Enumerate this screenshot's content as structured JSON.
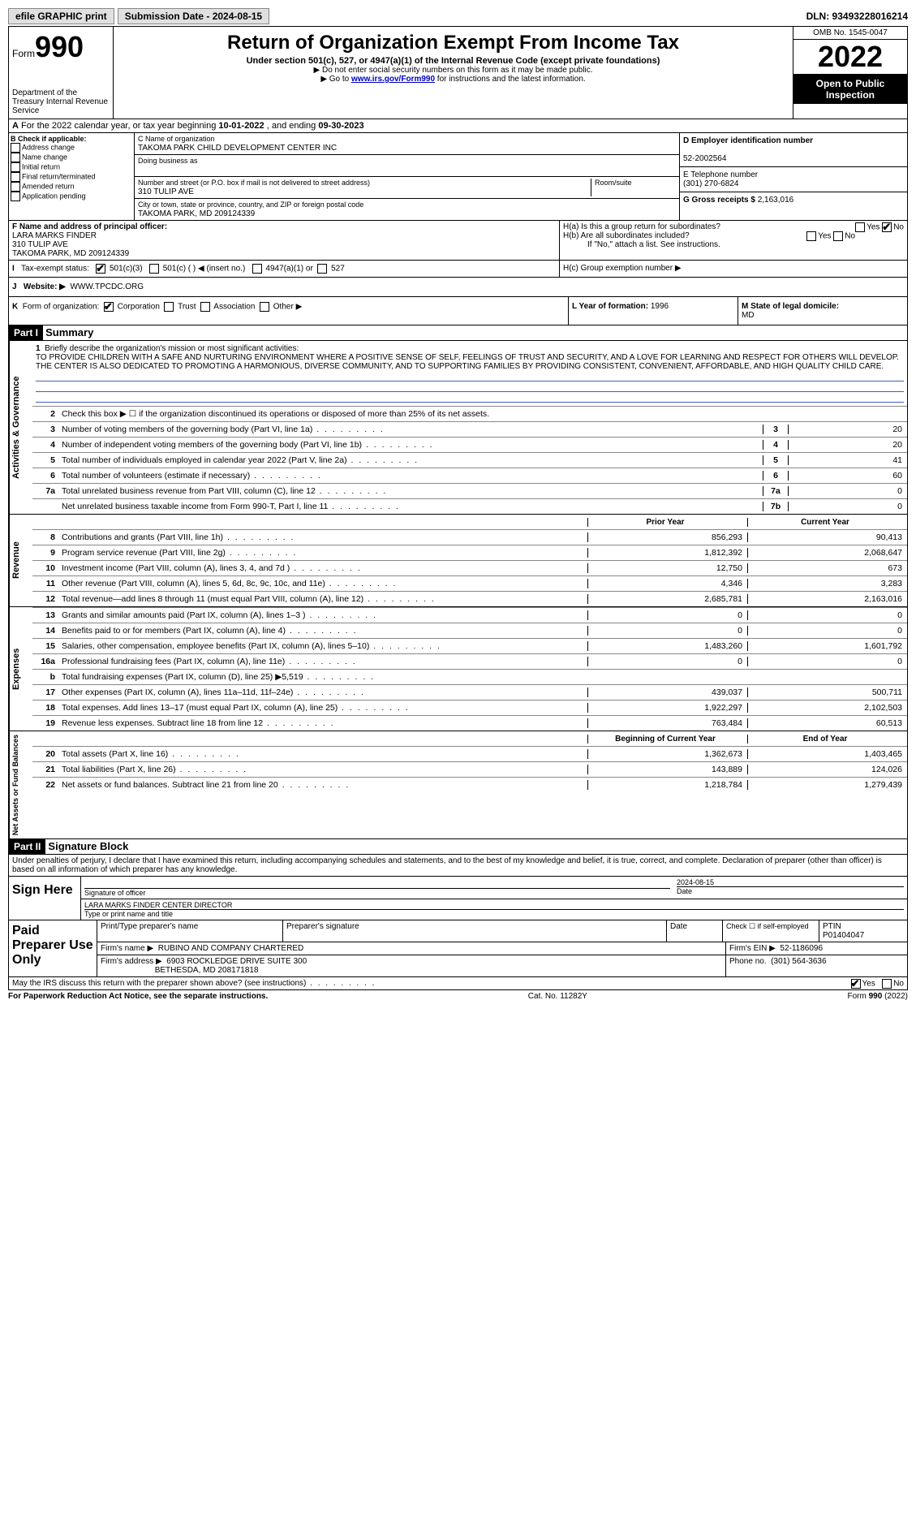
{
  "topbar": {
    "efile": "efile GRAPHIC print",
    "submission": "Submission Date - 2024-08-15",
    "dln": "DLN: 93493228016214"
  },
  "header": {
    "form_prefix": "Form",
    "form_number": "990",
    "title": "Return of Organization Exempt From Income Tax",
    "subtitle": "Under section 501(c), 527, or 4947(a)(1) of the Internal Revenue Code (except private foundations)",
    "note1": "▶ Do not enter social security numbers on this form as it may be made public.",
    "note2_prefix": "▶ Go to ",
    "note2_link": "www.irs.gov/Form990",
    "note2_suffix": " for instructions and the latest information.",
    "dept": "Department of the Treasury\nInternal Revenue Service",
    "omb": "OMB No. 1545-0047",
    "year": "2022",
    "open": "Open to Public Inspection"
  },
  "rowA": {
    "label": "A",
    "text_pre": "For the 2022 calendar year, or tax year beginning ",
    "begin": "10-01-2022",
    "mid": " , and ending ",
    "end": "09-30-2023"
  },
  "boxB": {
    "title": "B Check if applicable:",
    "items": [
      "Address change",
      "Name change",
      "Initial return",
      "Final return/terminated",
      "Amended return",
      "Application pending"
    ]
  },
  "boxC": {
    "name_label": "C Name of organization",
    "name": "TAKOMA PARK CHILD DEVELOPMENT CENTER INC",
    "dba_label": "Doing business as",
    "dba": "",
    "addr_label": "Number and street (or P.O. box if mail is not delivered to street address)",
    "room_label": "Room/suite",
    "addr": "310 TULIP AVE",
    "city_label": "City or town, state or province, country, and ZIP or foreign postal code",
    "city": "TAKOMA PARK, MD  209124339"
  },
  "boxD": {
    "ein_label": "D Employer identification number",
    "ein": "52-2002564",
    "phone_label": "E Telephone number",
    "phone": "(301) 270-6824",
    "gross_label": "G Gross receipts $",
    "gross": "2,163,016"
  },
  "boxF": {
    "label": "F  Name and address of principal officer:",
    "name": "LARA MARKS FINDER",
    "addr1": "310 TULIP AVE",
    "addr2": "TAKOMA PARK, MD  209124339"
  },
  "boxH": {
    "ha": "H(a)  Is this a group return for subordinates?",
    "hb": "H(b)  Are all subordinates included?",
    "hb_note": "If \"No,\" attach a list. See instructions.",
    "hc": "H(c)  Group exemption number ▶",
    "yes": "Yes",
    "no": "No"
  },
  "rowI": {
    "label": "I",
    "text": "Tax-exempt status:",
    "opt1": "501(c)(3)",
    "opt2": "501(c) (  ) ◀ (insert no.)",
    "opt3": "4947(a)(1) or",
    "opt4": "527"
  },
  "rowJ": {
    "label": "J",
    "text": "Website: ▶",
    "val": "WWW.TPCDC.ORG"
  },
  "rowK": {
    "label": "K",
    "text": "Form of organization:",
    "opts": [
      "Corporation",
      "Trust",
      "Association",
      "Other ▶"
    ]
  },
  "rowL": {
    "yof_label": "L Year of formation:",
    "yof": "1996",
    "state_label": "M State of legal domicile: ",
    "state": "MD"
  },
  "part1": {
    "header": "Part I",
    "title": "Summary"
  },
  "summary": {
    "l1_label": "1",
    "l1_text": "Briefly describe the organization's mission or most significant activities:",
    "l1_mission": "TO PROVIDE CHILDREN WITH A SAFE AND NURTURING ENVIRONMENT WHERE A POSITIVE SENSE OF SELF, FEELINGS OF TRUST AND SECURITY, AND A LOVE FOR LEARNING AND RESPECT FOR OTHERS WILL DEVELOP. THE CENTER IS ALSO DEDICATED TO PROMOTING A HARMONIOUS, DIVERSE COMMUNITY, AND TO SUPPORTING FAMILIES BY PROVIDING CONSISTENT, CONVENIENT, AFFORDABLE, AND HIGH QUALITY CHILD CARE.",
    "l2": "Check this box ▶ ☐ if the organization discontinued its operations or disposed of more than 25% of its net assets.",
    "lines_single": [
      {
        "num": "3",
        "text": "Number of voting members of the governing body (Part VI, line 1a)",
        "box": "3",
        "val": "20"
      },
      {
        "num": "4",
        "text": "Number of independent voting members of the governing body (Part VI, line 1b)",
        "box": "4",
        "val": "20"
      },
      {
        "num": "5",
        "text": "Total number of individuals employed in calendar year 2022 (Part V, line 2a)",
        "box": "5",
        "val": "41"
      },
      {
        "num": "6",
        "text": "Total number of volunteers (estimate if necessary)",
        "box": "6",
        "val": "60"
      },
      {
        "num": "7a",
        "text": "Total unrelated business revenue from Part VIII, column (C), line 12",
        "box": "7a",
        "val": "0"
      },
      {
        "num": "",
        "text": "Net unrelated business taxable income from Form 990-T, Part I, line 11",
        "box": "7b",
        "val": "0"
      }
    ],
    "col_prior": "Prior Year",
    "col_current": "Current Year",
    "revenue": [
      {
        "num": "8",
        "text": "Contributions and grants (Part VIII, line 1h)",
        "prior": "856,293",
        "curr": "90,413"
      },
      {
        "num": "9",
        "text": "Program service revenue (Part VIII, line 2g)",
        "prior": "1,812,392",
        "curr": "2,068,647"
      },
      {
        "num": "10",
        "text": "Investment income (Part VIII, column (A), lines 3, 4, and 7d )",
        "prior": "12,750",
        "curr": "673"
      },
      {
        "num": "11",
        "text": "Other revenue (Part VIII, column (A), lines 5, 6d, 8c, 9c, 10c, and 11e)",
        "prior": "4,346",
        "curr": "3,283"
      },
      {
        "num": "12",
        "text": "Total revenue—add lines 8 through 11 (must equal Part VIII, column (A), line 12)",
        "prior": "2,685,781",
        "curr": "2,163,016"
      }
    ],
    "expenses": [
      {
        "num": "13",
        "text": "Grants and similar amounts paid (Part IX, column (A), lines 1–3 )",
        "prior": "0",
        "curr": "0"
      },
      {
        "num": "14",
        "text": "Benefits paid to or for members (Part IX, column (A), line 4)",
        "prior": "0",
        "curr": "0"
      },
      {
        "num": "15",
        "text": "Salaries, other compensation, employee benefits (Part IX, column (A), lines 5–10)",
        "prior": "1,483,260",
        "curr": "1,601,792"
      },
      {
        "num": "16a",
        "text": "Professional fundraising fees (Part IX, column (A), line 11e)",
        "prior": "0",
        "curr": "0"
      },
      {
        "num": "b",
        "text": "Total fundraising expenses (Part IX, column (D), line 25) ▶5,519",
        "prior": "",
        "curr": "",
        "shaded": true
      },
      {
        "num": "17",
        "text": "Other expenses (Part IX, column (A), lines 11a–11d, 11f–24e)",
        "prior": "439,037",
        "curr": "500,711"
      },
      {
        "num": "18",
        "text": "Total expenses. Add lines 13–17 (must equal Part IX, column (A), line 25)",
        "prior": "1,922,297",
        "curr": "2,102,503"
      },
      {
        "num": "19",
        "text": "Revenue less expenses. Subtract line 18 from line 12",
        "prior": "763,484",
        "curr": "60,513"
      }
    ],
    "col_begin": "Beginning of Current Year",
    "col_end": "End of Year",
    "netassets": [
      {
        "num": "20",
        "text": "Total assets (Part X, line 16)",
        "prior": "1,362,673",
        "curr": "1,403,465"
      },
      {
        "num": "21",
        "text": "Total liabilities (Part X, line 26)",
        "prior": "143,889",
        "curr": "124,026"
      },
      {
        "num": "22",
        "text": "Net assets or fund balances. Subtract line 21 from line 20",
        "prior": "1,218,784",
        "curr": "1,279,439"
      }
    ],
    "side_ag": "Activities & Governance",
    "side_rev": "Revenue",
    "side_exp": "Expenses",
    "side_na": "Net Assets or Fund Balances"
  },
  "part2": {
    "header": "Part II",
    "title": "Signature Block",
    "penalty": "Under penalties of perjury, I declare that I have examined this return, including accompanying schedules and statements, and to the best of my knowledge and belief, it is true, correct, and complete. Declaration of preparer (other than officer) is based on all information of which preparer has any knowledge.",
    "sign_here": "Sign Here",
    "sig_officer": "Signature of officer",
    "sig_date": "Date",
    "sig_date_val": "2024-08-15",
    "sig_name": "LARA MARKS FINDER  CENTER DIRECTOR",
    "sig_name_label": "Type or print name and title",
    "paid": "Paid Preparer Use Only",
    "prep_name_label": "Print/Type preparer's name",
    "prep_sig_label": "Preparer's signature",
    "prep_date_label": "Date",
    "prep_check": "Check ☐ if self-employed",
    "ptin_label": "PTIN",
    "ptin": "P01404047",
    "firm_name_label": "Firm's name    ▶",
    "firm_name": "RUBINO AND COMPANY CHARTERED",
    "firm_ein_label": "Firm's EIN ▶",
    "firm_ein": "52-1186096",
    "firm_addr_label": "Firm's address ▶",
    "firm_addr1": "6903 ROCKLEDGE DRIVE SUITE 300",
    "firm_addr2": "BETHESDA, MD  208171818",
    "firm_phone_label": "Phone no.",
    "firm_phone": "(301) 564-3636",
    "may_irs": "May the IRS discuss this return with the preparer shown above? (see instructions)"
  },
  "footer": {
    "paperwork": "For Paperwork Reduction Act Notice, see the separate instructions.",
    "cat": "Cat. No. 11282Y",
    "form": "Form 990 (2022)"
  }
}
